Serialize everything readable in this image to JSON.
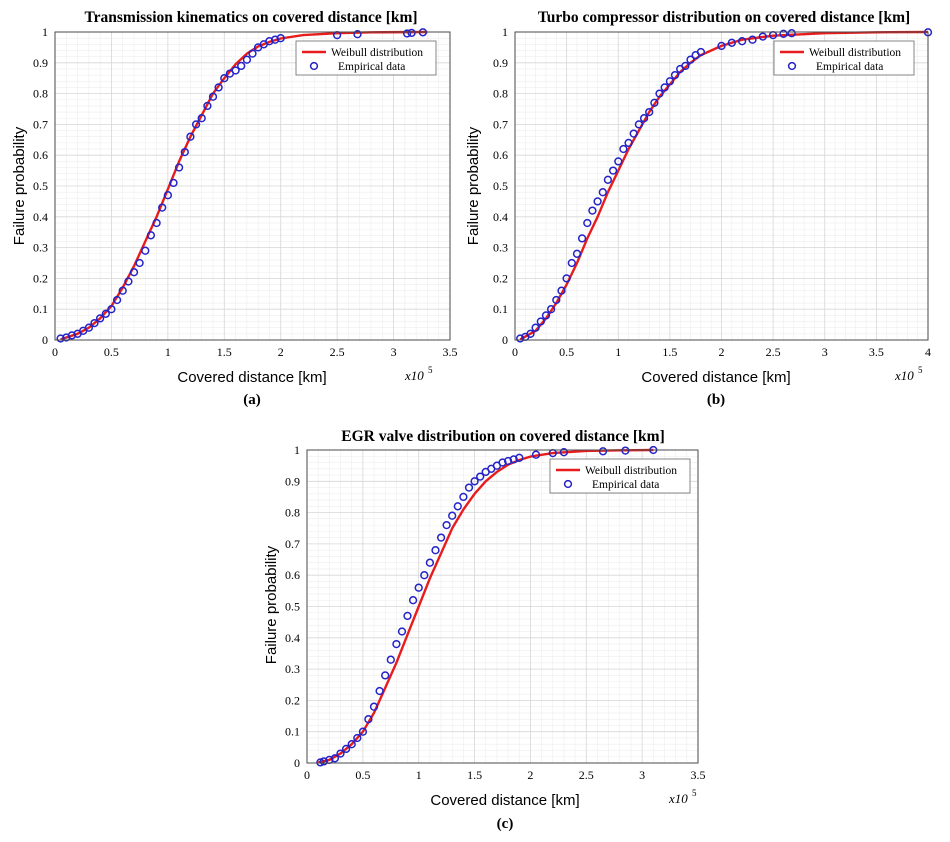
{
  "colors": {
    "weibull": "#e81c1c",
    "empirical": "#2323c8",
    "grid_major": "#d6d6d6",
    "grid_minor": "#ededed",
    "axis": "#4a4a4a"
  },
  "chart_data": [
    {
      "id": "a",
      "type": "line",
      "title": "Transmission kinematics on covered distance [km]",
      "xlabel": "Covered distance [km]",
      "ylabel": "Failure probability",
      "x_exponent_base": "x10",
      "x_exponent_power": "5",
      "panel_label": "(a)",
      "xlim": [
        0,
        3.5
      ],
      "ylim": [
        0,
        1
      ],
      "xticks": [
        0,
        0.5,
        1,
        1.5,
        2,
        2.5,
        3,
        3.5
      ],
      "xtick_labels": [
        "0",
        "0.5",
        "1",
        "1.5",
        "2",
        "2.5",
        "3",
        "3.5"
      ],
      "yticks": [
        0,
        0.1,
        0.2,
        0.3,
        0.4,
        0.5,
        0.6,
        0.7,
        0.8,
        0.9,
        1
      ],
      "ytick_labels": [
        "0",
        "0.1",
        "0.2",
        "0.3",
        "0.4",
        "0.5",
        "0.6",
        "0.7",
        "0.8",
        "0.9",
        "1"
      ],
      "grid": true,
      "legend_position": "top-right",
      "legend": [
        "Weibull distribution",
        "Empirical data"
      ],
      "series": [
        {
          "name": "Weibull distribution",
          "style": "line",
          "x": [
            0.05,
            0.2,
            0.3,
            0.4,
            0.5,
            0.6,
            0.7,
            0.8,
            0.9,
            1.0,
            1.1,
            1.2,
            1.3,
            1.4,
            1.5,
            1.6,
            1.7,
            1.8,
            1.9,
            2.0,
            2.2,
            2.5,
            2.8,
            3.3
          ],
          "y": [
            0.002,
            0.02,
            0.04,
            0.07,
            0.11,
            0.17,
            0.24,
            0.32,
            0.4,
            0.49,
            0.58,
            0.66,
            0.73,
            0.8,
            0.85,
            0.895,
            0.93,
            0.953,
            0.968,
            0.979,
            0.99,
            0.996,
            0.999,
            1.0
          ]
        },
        {
          "name": "Empirical data",
          "style": "markers",
          "x": [
            0.05,
            0.1,
            0.15,
            0.2,
            0.25,
            0.3,
            0.35,
            0.4,
            0.45,
            0.5,
            0.55,
            0.6,
            0.65,
            0.7,
            0.75,
            0.8,
            0.85,
            0.9,
            0.95,
            1.0,
            1.05,
            1.1,
            1.15,
            1.2,
            1.25,
            1.3,
            1.35,
            1.4,
            1.45,
            1.5,
            1.55,
            1.6,
            1.65,
            1.7,
            1.75,
            1.8,
            1.85,
            1.9,
            1.95,
            2.0,
            2.5,
            2.68,
            3.12,
            3.16,
            3.26
          ],
          "y": [
            0.005,
            0.008,
            0.015,
            0.02,
            0.03,
            0.04,
            0.055,
            0.07,
            0.085,
            0.1,
            0.13,
            0.16,
            0.19,
            0.22,
            0.25,
            0.29,
            0.34,
            0.38,
            0.43,
            0.47,
            0.51,
            0.56,
            0.61,
            0.66,
            0.7,
            0.72,
            0.76,
            0.79,
            0.82,
            0.85,
            0.865,
            0.875,
            0.89,
            0.91,
            0.93,
            0.95,
            0.96,
            0.97,
            0.975,
            0.98,
            0.99,
            0.993,
            0.995,
            0.997,
            0.999
          ]
        }
      ]
    },
    {
      "id": "b",
      "type": "line",
      "title": "Turbo compressor distribution on covered distance [km]",
      "xlabel": "Covered distance [km]",
      "ylabel": "Failure probability",
      "x_exponent_base": "x10",
      "x_exponent_power": "5",
      "panel_label": "(b)",
      "xlim": [
        0,
        4
      ],
      "ylim": [
        0,
        1
      ],
      "xticks": [
        0,
        0.5,
        1,
        1.5,
        2,
        2.5,
        3,
        3.5,
        4
      ],
      "xtick_labels": [
        "0",
        "0.5",
        "1",
        "1.5",
        "2",
        "2.5",
        "3",
        "3.5",
        "4"
      ],
      "yticks": [
        0,
        0.1,
        0.2,
        0.3,
        0.4,
        0.5,
        0.6,
        0.7,
        0.8,
        0.9,
        1
      ],
      "ytick_labels": [
        "0",
        "0.1",
        "0.2",
        "0.3",
        "0.4",
        "0.5",
        "0.6",
        "0.7",
        "0.8",
        "0.9",
        "1"
      ],
      "grid": true,
      "legend_position": "top-right",
      "legend": [
        "Weibull distribution",
        "Empirical data"
      ],
      "series": [
        {
          "name": "Weibull distribution",
          "style": "line",
          "x": [
            0.05,
            0.2,
            0.3,
            0.4,
            0.5,
            0.6,
            0.7,
            0.8,
            0.9,
            1.0,
            1.1,
            1.2,
            1.3,
            1.4,
            1.5,
            1.6,
            1.7,
            1.8,
            2.0,
            2.2,
            2.5,
            3.0,
            3.5,
            4.0
          ],
          "y": [
            0.002,
            0.03,
            0.07,
            0.12,
            0.18,
            0.25,
            0.33,
            0.4,
            0.48,
            0.55,
            0.62,
            0.68,
            0.74,
            0.79,
            0.83,
            0.87,
            0.9,
            0.925,
            0.955,
            0.975,
            0.988,
            0.996,
            0.999,
            1.0
          ]
        },
        {
          "name": "Empirical data",
          "style": "markers",
          "x": [
            0.05,
            0.1,
            0.15,
            0.2,
            0.25,
            0.3,
            0.35,
            0.4,
            0.45,
            0.5,
            0.55,
            0.6,
            0.65,
            0.7,
            0.75,
            0.8,
            0.85,
            0.9,
            0.95,
            1.0,
            1.05,
            1.1,
            1.15,
            1.2,
            1.25,
            1.3,
            1.35,
            1.4,
            1.45,
            1.5,
            1.55,
            1.6,
            1.65,
            1.7,
            1.75,
            1.8,
            2.0,
            2.1,
            2.2,
            2.3,
            2.4,
            2.5,
            2.6,
            2.68,
            4.0
          ],
          "y": [
            0.005,
            0.01,
            0.02,
            0.04,
            0.06,
            0.08,
            0.1,
            0.13,
            0.16,
            0.2,
            0.25,
            0.28,
            0.33,
            0.38,
            0.42,
            0.45,
            0.48,
            0.52,
            0.55,
            0.58,
            0.62,
            0.64,
            0.67,
            0.7,
            0.72,
            0.74,
            0.77,
            0.8,
            0.82,
            0.84,
            0.86,
            0.88,
            0.89,
            0.91,
            0.925,
            0.935,
            0.955,
            0.965,
            0.97,
            0.975,
            0.985,
            0.99,
            0.994,
            0.996,
            0.999
          ]
        }
      ]
    },
    {
      "id": "c",
      "type": "line",
      "title": "EGR valve distribution on covered distance [km]",
      "xlabel": "Covered distance [km]",
      "ylabel": "Failure probability",
      "x_exponent_base": "x10",
      "x_exponent_power": "5",
      "panel_label": "(c)",
      "xlim": [
        0,
        3.5
      ],
      "ylim": [
        0,
        1
      ],
      "xticks": [
        0,
        0.5,
        1,
        1.5,
        2,
        2.5,
        3,
        3.5
      ],
      "xtick_labels": [
        "0",
        "0.5",
        "1",
        "1.5",
        "2",
        "2.5",
        "3",
        "3.5"
      ],
      "yticks": [
        0,
        0.1,
        0.2,
        0.3,
        0.4,
        0.5,
        0.6,
        0.7,
        0.8,
        0.9,
        1
      ],
      "ytick_labels": [
        "0",
        "0.1",
        "0.2",
        "0.3",
        "0.4",
        "0.5",
        "0.6",
        "0.7",
        "0.8",
        "0.9",
        "1"
      ],
      "grid": true,
      "legend_position": "top-right",
      "legend": [
        "Weibull distribution",
        "Empirical data"
      ],
      "series": [
        {
          "name": "Weibull distribution",
          "style": "line",
          "x": [
            0.1,
            0.2,
            0.3,
            0.4,
            0.5,
            0.6,
            0.7,
            0.8,
            0.9,
            1.0,
            1.1,
            1.2,
            1.3,
            1.4,
            1.5,
            1.6,
            1.7,
            1.8,
            1.9,
            2.0,
            2.2,
            2.5,
            2.8,
            3.1
          ],
          "y": [
            0.002,
            0.01,
            0.03,
            0.06,
            0.1,
            0.16,
            0.24,
            0.32,
            0.41,
            0.5,
            0.59,
            0.67,
            0.75,
            0.81,
            0.86,
            0.9,
            0.93,
            0.953,
            0.968,
            0.979,
            0.99,
            0.997,
            0.999,
            1.0
          ]
        },
        {
          "name": "Empirical data",
          "style": "markers",
          "x": [
            0.12,
            0.15,
            0.2,
            0.25,
            0.3,
            0.35,
            0.4,
            0.45,
            0.5,
            0.55,
            0.6,
            0.65,
            0.7,
            0.75,
            0.8,
            0.85,
            0.9,
            0.95,
            1.0,
            1.05,
            1.1,
            1.15,
            1.2,
            1.25,
            1.3,
            1.35,
            1.4,
            1.45,
            1.5,
            1.55,
            1.6,
            1.65,
            1.7,
            1.75,
            1.8,
            1.85,
            1.9,
            2.05,
            2.2,
            2.3,
            2.65,
            2.85,
            3.1
          ],
          "y": [
            0.002,
            0.005,
            0.01,
            0.015,
            0.03,
            0.045,
            0.06,
            0.08,
            0.1,
            0.14,
            0.18,
            0.23,
            0.28,
            0.33,
            0.38,
            0.42,
            0.47,
            0.52,
            0.56,
            0.6,
            0.64,
            0.68,
            0.72,
            0.76,
            0.79,
            0.82,
            0.85,
            0.88,
            0.9,
            0.915,
            0.93,
            0.94,
            0.95,
            0.96,
            0.965,
            0.97,
            0.975,
            0.985,
            0.99,
            0.993,
            0.996,
            0.998,
            1.0
          ]
        }
      ]
    }
  ]
}
